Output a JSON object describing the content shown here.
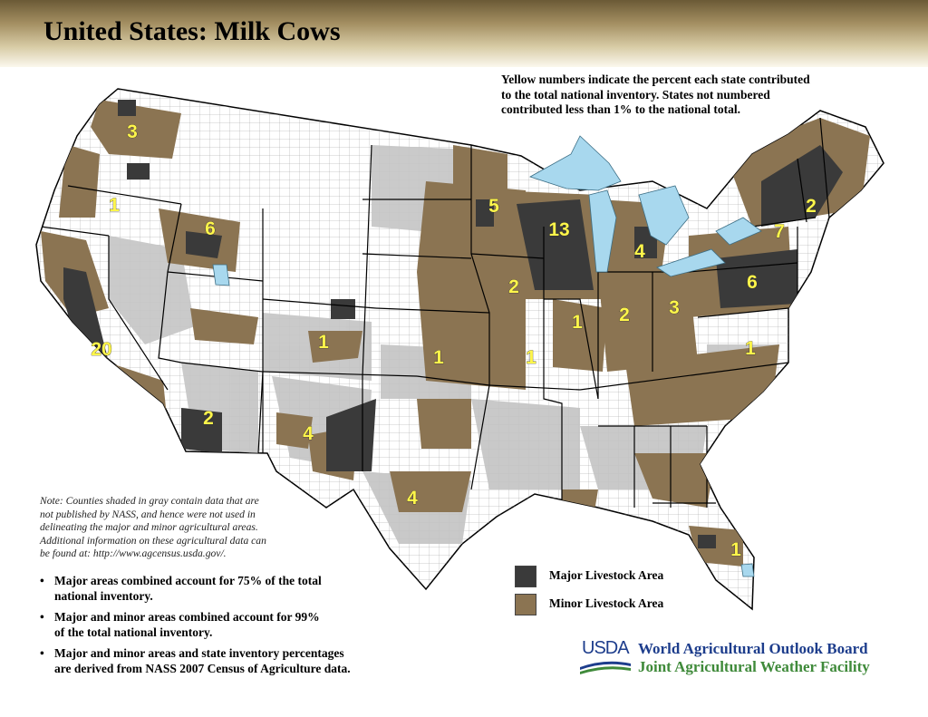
{
  "title": "United States:  Milk Cows",
  "legend_note": [
    "Yellow numbers indicate the percent each state contributed",
    "to the total national inventory.  States not numbered",
    "contributed less than 1% to the national total."
  ],
  "state_percentages": [
    {
      "state": "WA",
      "value": "3"
    },
    {
      "state": "OR",
      "value": "1"
    },
    {
      "state": "ID",
      "value": "6"
    },
    {
      "state": "CA",
      "value": "20"
    },
    {
      "state": "AZ",
      "value": "2"
    },
    {
      "state": "CO",
      "value": "1"
    },
    {
      "state": "NM",
      "value": "4"
    },
    {
      "state": "TX",
      "value": "4"
    },
    {
      "state": "MN",
      "value": "5"
    },
    {
      "state": "WI",
      "value": "13"
    },
    {
      "state": "IA",
      "value": "2"
    },
    {
      "state": "KS",
      "value": "1"
    },
    {
      "state": "MO",
      "value": "1"
    },
    {
      "state": "IL",
      "value": "1"
    },
    {
      "state": "IN",
      "value": "2"
    },
    {
      "state": "OH",
      "value": "3"
    },
    {
      "state": "MI",
      "value": "4"
    },
    {
      "state": "PA",
      "value": "6"
    },
    {
      "state": "NY",
      "value": "7"
    },
    {
      "state": "VT",
      "value": "2"
    },
    {
      "state": "VA",
      "value": "1"
    },
    {
      "state": "FL",
      "value": "1"
    }
  ],
  "note": [
    "Note:  Counties shaded in gray contain data that are",
    "not published by NASS, and hence were not used in",
    "delineating the major and minor agricultural areas.",
    "Additional information on these agricultural data can",
    "be found at:  http://www.agcensus.usda.gov/."
  ],
  "bullets": [
    [
      "Major areas combined account for 75% of the total",
      "national inventory."
    ],
    [
      "Major and minor areas combined account for 99%",
      "of the total national inventory."
    ],
    [
      "Major and minor areas and state inventory percentages",
      "are derived from NASS 2007 Census of Agriculture data."
    ]
  ],
  "legend": [
    {
      "label": "Major Livestock Area",
      "color": "#3a3a3a"
    },
    {
      "label": "Minor Livestock Area",
      "color": "#8b7452"
    }
  ],
  "colors": {
    "major": "#3a3a3a",
    "minor": "#8b7452",
    "gray": "#c4c4c4",
    "water": "#a8d8ee",
    "label": "#fff64b"
  },
  "logo": {
    "text": "USDA",
    "org1": "World Agricultural Outlook Board",
    "org2": "Joint Agricultural Weather Facility"
  }
}
